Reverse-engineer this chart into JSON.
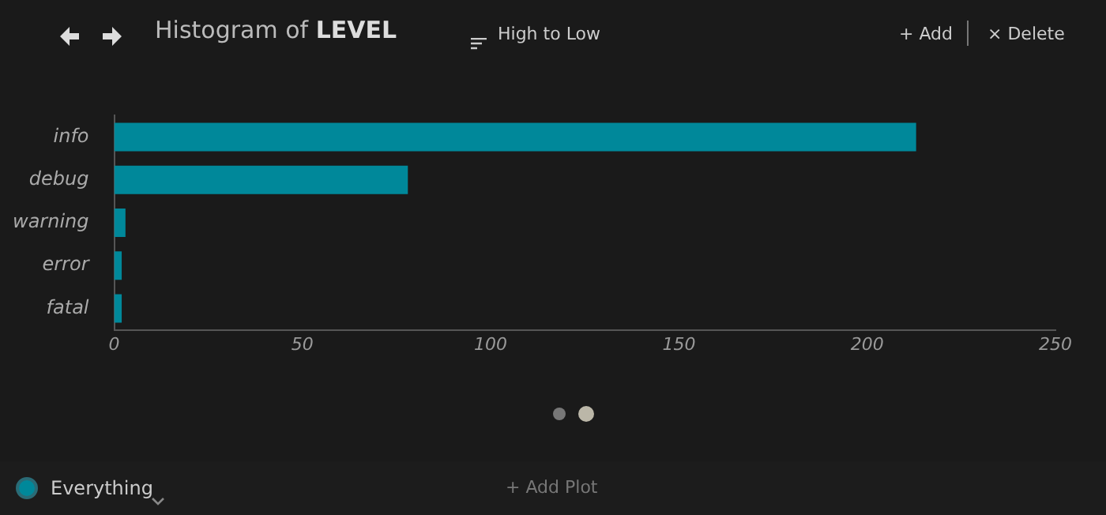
{
  "chart_data": {
    "type": "bar",
    "orientation": "horizontal",
    "title": "Histogram of LEVEL",
    "categories": [
      "info",
      "debug",
      "warning",
      "error",
      "fatal"
    ],
    "values": [
      213,
      78,
      3,
      2,
      2
    ],
    "color": "#00889a",
    "xlim": [
      0,
      250
    ],
    "xticks": [
      0,
      50,
      100,
      150,
      200,
      250
    ],
    "grid": false,
    "legend": false,
    "annotations": [
      "High to Low",
      "+ Add",
      "× Delete",
      "Everything",
      "+ Add Plot"
    ]
  }
}
